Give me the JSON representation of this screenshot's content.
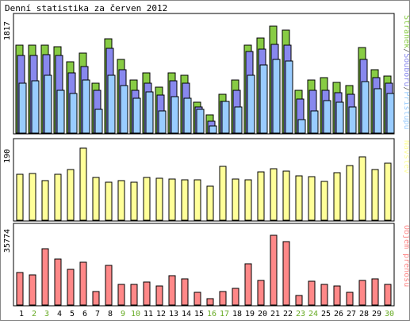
{
  "title": "Denní statistika za červen 2012",
  "colors": {
    "hits": "#99ccff",
    "files": "#8888ee",
    "pages": "#88cc44",
    "visits": "#ffff99",
    "kbytes": "#ff8888",
    "day_weekday": "#000000",
    "day_weekend": "#66aa22",
    "bar_stroke": "#000000"
  },
  "days": [
    {
      "label": "1",
      "weekend": false
    },
    {
      "label": "2",
      "weekend": true
    },
    {
      "label": "3",
      "weekend": true
    },
    {
      "label": "4",
      "weekend": false
    },
    {
      "label": "5",
      "weekend": false
    },
    {
      "label": "6",
      "weekend": false
    },
    {
      "label": "7",
      "weekend": false
    },
    {
      "label": "8",
      "weekend": false
    },
    {
      "label": "9",
      "weekend": true
    },
    {
      "label": "10",
      "weekend": true
    },
    {
      "label": "11",
      "weekend": false
    },
    {
      "label": "12",
      "weekend": false
    },
    {
      "label": "13",
      "weekend": false
    },
    {
      "label": "14",
      "weekend": false
    },
    {
      "label": "15",
      "weekend": false
    },
    {
      "label": "16",
      "weekend": true
    },
    {
      "label": "17",
      "weekend": true
    },
    {
      "label": "18",
      "weekend": false
    },
    {
      "label": "19",
      "weekend": false
    },
    {
      "label": "20",
      "weekend": false
    },
    {
      "label": "21",
      "weekend": false
    },
    {
      "label": "22",
      "weekend": false
    },
    {
      "label": "23",
      "weekend": true
    },
    {
      "label": "24",
      "weekend": true
    },
    {
      "label": "25",
      "weekend": false
    },
    {
      "label": "26",
      "weekend": false
    },
    {
      "label": "27",
      "weekend": false
    },
    {
      "label": "28",
      "weekend": false
    },
    {
      "label": "29",
      "weekend": false
    },
    {
      "label": "30",
      "weekend": true
    }
  ],
  "chart_data": [
    {
      "type": "bar",
      "panel": "hits-files-pages",
      "max_label": "1817",
      "ylim": [
        0,
        1817
      ],
      "legend": [
        {
          "text": "Stránek",
          "color_key": "pages"
        },
        {
          "text": "/",
          "color_key": "legend_sep"
        },
        {
          "text": "Souborů",
          "color_key": "files"
        },
        {
          "text": "/",
          "color_key": "legend_sep"
        },
        {
          "text": "Přístupů",
          "color_key": "hits"
        }
      ],
      "categories": [
        "1",
        "2",
        "3",
        "4",
        "5",
        "6",
        "7",
        "8",
        "9",
        "10",
        "11",
        "12",
        "13",
        "14",
        "15",
        "16",
        "17",
        "18",
        "19",
        "20",
        "21",
        "22",
        "23",
        "24",
        "25",
        "26",
        "27",
        "28",
        "29",
        "30"
      ],
      "series": [
        {
          "color_key": "pages",
          "values": [
            1450,
            1450,
            1450,
            1430,
            1170,
            1320,
            830,
            1560,
            1220,
            870,
            990,
            760,
            1000,
            960,
            510,
            300,
            640,
            870,
            1450,
            1570,
            1770,
            1700,
            700,
            870,
            920,
            840,
            780,
            1410,
            1050,
            940
          ]
        },
        {
          "color_key": "files",
          "values": [
            1280,
            1280,
            1290,
            1280,
            1000,
            1100,
            710,
            1400,
            1040,
            700,
            830,
            630,
            860,
            830,
            430,
            190,
            520,
            710,
            1340,
            1390,
            1470,
            1450,
            560,
            700,
            700,
            670,
            640,
            1220,
            920,
            820
          ]
        },
        {
          "color_key": "hits",
          "values": [
            830,
            860,
            950,
            710,
            660,
            880,
            390,
            950,
            790,
            570,
            680,
            370,
            600,
            570,
            390,
            120,
            520,
            430,
            960,
            1130,
            1220,
            1190,
            220,
            360,
            530,
            510,
            430,
            850,
            730,
            650
          ]
        }
      ]
    },
    {
      "type": "bar",
      "panel": "visits",
      "max_label": "190",
      "ylim": [
        0,
        190
      ],
      "legend": [
        {
          "text": "Návštěv",
          "color_key": "visits"
        }
      ],
      "categories": [
        "1",
        "2",
        "3",
        "4",
        "5",
        "6",
        "7",
        "8",
        "9",
        "10",
        "11",
        "12",
        "13",
        "14",
        "15",
        "16",
        "17",
        "18",
        "19",
        "20",
        "21",
        "22",
        "23",
        "24",
        "25",
        "26",
        "27",
        "28",
        "29",
        "30"
      ],
      "series": [
        {
          "color_key": "visits",
          "values": [
            121,
            124,
            104,
            122,
            134,
            190,
            113,
            100,
            104,
            101,
            112,
            111,
            109,
            107,
            106,
            89,
            142,
            108,
            107,
            127,
            136,
            129,
            116,
            114,
            102,
            125,
            145,
            167,
            133,
            151
          ]
        }
      ]
    },
    {
      "type": "bar",
      "panel": "kbytes",
      "max_label": "35774",
      "ylim": [
        0,
        35774
      ],
      "legend": [
        {
          "text": "Objem přenosu",
          "color_key": "kbytes"
        }
      ],
      "categories": [
        "1",
        "2",
        "3",
        "4",
        "5",
        "6",
        "7",
        "8",
        "9",
        "10",
        "11",
        "12",
        "13",
        "14",
        "15",
        "16",
        "17",
        "18",
        "19",
        "20",
        "21",
        "22",
        "23",
        "24",
        "25",
        "26",
        "27",
        "28",
        "29",
        "30"
      ],
      "series": [
        {
          "color_key": "kbytes",
          "values": [
            16100,
            14800,
            28100,
            22700,
            17600,
            21400,
            6500,
            19800,
            10400,
            10100,
            11300,
            9400,
            14500,
            13000,
            6400,
            3200,
            6600,
            8200,
            20500,
            12000,
            34700,
            31500,
            4800,
            11700,
            10200,
            9400,
            6100,
            12300,
            13100,
            10200
          ]
        }
      ]
    }
  ]
}
